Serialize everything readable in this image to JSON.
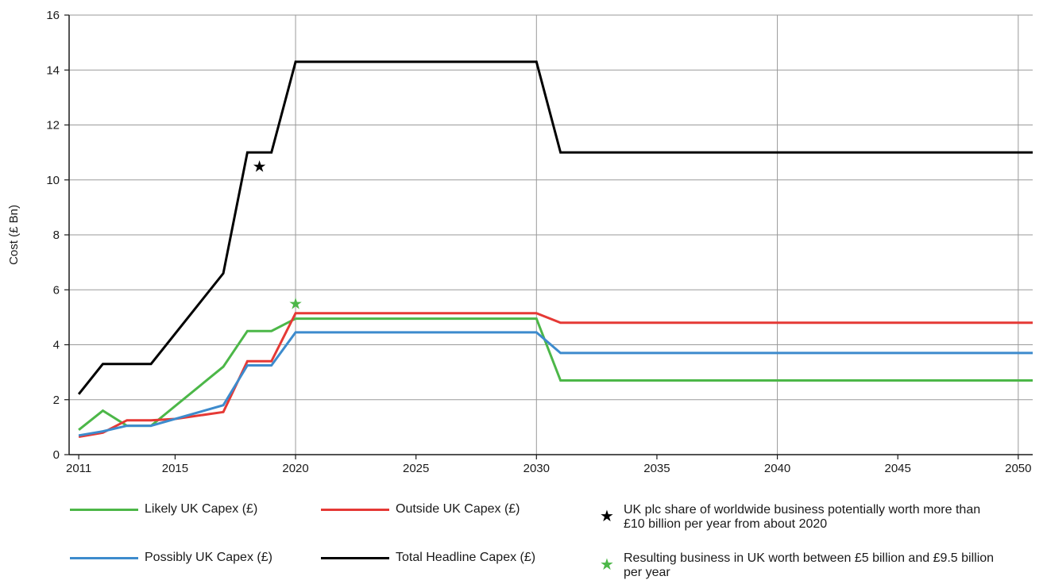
{
  "chart_data": {
    "type": "line",
    "title": "",
    "xlabel": "",
    "ylabel": "Cost (£ Bn)",
    "xlim": [
      2010.6,
      2050.6
    ],
    "ylim": [
      0,
      16
    ],
    "xticks": [
      2011,
      2015,
      2020,
      2025,
      2030,
      2035,
      2040,
      2045,
      2050
    ],
    "yticks": [
      0,
      2,
      4,
      6,
      8,
      10,
      12,
      14,
      16
    ],
    "grid": true,
    "legend_position": "bottom",
    "series": [
      {
        "name": "Likely UK Capex (£)",
        "color": "#4cb748",
        "points": [
          [
            2011,
            0.9
          ],
          [
            2012,
            1.6
          ],
          [
            2013,
            1.05
          ],
          [
            2014,
            1.05
          ],
          [
            2017,
            3.2
          ],
          [
            2018,
            4.5
          ],
          [
            2019,
            4.5
          ],
          [
            2020,
            4.95
          ],
          [
            2030,
            4.95
          ],
          [
            2031,
            2.7
          ],
          [
            2050.6,
            2.7
          ]
        ]
      },
      {
        "name": "Outside UK Capex (£)",
        "color": "#e53935",
        "points": [
          [
            2011,
            0.65
          ],
          [
            2012,
            0.8
          ],
          [
            2013,
            1.25
          ],
          [
            2014,
            1.25
          ],
          [
            2015,
            1.3
          ],
          [
            2017,
            1.55
          ],
          [
            2018,
            3.4
          ],
          [
            2019,
            3.4
          ],
          [
            2020,
            5.15
          ],
          [
            2030,
            5.15
          ],
          [
            2031,
            4.8
          ],
          [
            2050.6,
            4.8
          ]
        ]
      },
      {
        "name": "Possibly UK Capex (£)",
        "color": "#3d8bcd",
        "points": [
          [
            2011,
            0.7
          ],
          [
            2012,
            0.85
          ],
          [
            2013,
            1.05
          ],
          [
            2014,
            1.05
          ],
          [
            2017,
            1.8
          ],
          [
            2018,
            3.25
          ],
          [
            2019,
            3.25
          ],
          [
            2020,
            4.45
          ],
          [
            2030,
            4.45
          ],
          [
            2031,
            3.7
          ],
          [
            2050.6,
            3.7
          ]
        ]
      },
      {
        "name": "Total Headline Capex (£)",
        "color": "#000000",
        "points": [
          [
            2011,
            2.2
          ],
          [
            2012,
            3.3
          ],
          [
            2013,
            3.3
          ],
          [
            2014,
            3.3
          ],
          [
            2017,
            6.6
          ],
          [
            2018,
            11.0
          ],
          [
            2019,
            11.0
          ],
          [
            2020,
            14.3
          ],
          [
            2030,
            14.3
          ],
          [
            2031,
            11.0
          ],
          [
            2050.6,
            11.0
          ]
        ]
      }
    ],
    "annotations": [
      {
        "symbol": "★",
        "color": "#000000",
        "x": 2018.5,
        "y": 10.5,
        "text": "UK plc share of worldwide business potentially worth more than £10 billion per year from about 2020"
      },
      {
        "symbol": "★",
        "color": "#4cb748",
        "x": 2020,
        "y": 5.5,
        "text": "Resulting business in UK worth between £5 billion and £9.5 billion per year"
      }
    ]
  }
}
